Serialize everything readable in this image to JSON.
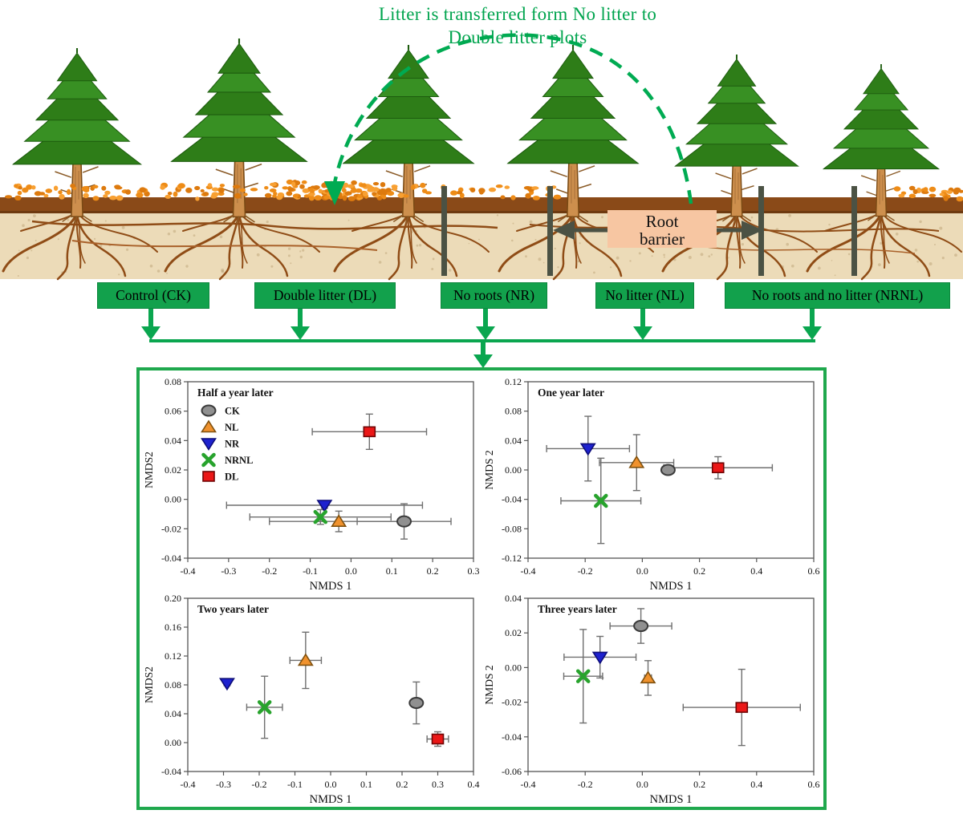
{
  "figure_title": {
    "line1": "Litter is transferred form No litter to",
    "line2": "Double litter plots"
  },
  "schematic": {
    "root_barrier_label": {
      "line1": "Root",
      "line2": "barrier"
    },
    "treatments": [
      {
        "label": "Control (CK)"
      },
      {
        "label": "Double litter (DL)"
      },
      {
        "label": "No roots (NR)"
      },
      {
        "label": "No litter (NL)"
      },
      {
        "label": "No roots and no litter (NRNL)"
      }
    ]
  },
  "colors": {
    "accent_green": "#00a44e",
    "box_green": "#12a14c",
    "panel_border_green": "#1fa84d",
    "dashed_arrow_green": "#00ab52",
    "barrier_label_bg": "#f7c6a2",
    "barrier_bar": "#4b5244",
    "ground_brown": "#8a4a18",
    "soil_tan": "#ecdbb8",
    "litter_orange": "#ee8c17",
    "error_bar_gray": "#6f6f6f"
  },
  "series_styles": {
    "CK": {
      "marker": "ellipse",
      "fill": "#909090",
      "stroke": "#3a3a3a"
    },
    "NL": {
      "marker": "triangle-up",
      "fill": "#f0922e",
      "stroke": "#80510f"
    },
    "NR": {
      "marker": "triangle-down",
      "fill": "#1e22cf",
      "stroke": "#0d0d7a"
    },
    "NRNL": {
      "marker": "x",
      "fill": "#28a32d",
      "stroke": "#1c7a20"
    },
    "DL": {
      "marker": "square",
      "fill": "#eb1717",
      "stroke": "#6e0505"
    }
  },
  "chart_data": [
    {
      "type": "scatter",
      "title": "Half a year later",
      "xlabel": "NMDS 1",
      "ylabel": "NMDS2",
      "xlim": [
        -0.4,
        0.3
      ],
      "xticks": [
        "-0.4",
        "-0.3",
        "-0.2",
        "-0.1",
        "0.0",
        "0.1",
        "0.2",
        "0.3"
      ],
      "ylim": [
        -0.04,
        0.08
      ],
      "yticks": [
        "0.08",
        "0.06",
        "0.04",
        "0.02",
        "0.00",
        "-0.02",
        "-0.04"
      ],
      "legend": [
        "CK",
        "NL",
        "NR",
        "NRNL",
        "DL"
      ],
      "points": [
        {
          "series": "CK",
          "x": 0.13,
          "y": -0.015,
          "xerr": 0.115,
          "yerr": 0.012
        },
        {
          "series": "NL",
          "x": -0.03,
          "y": -0.015,
          "xerr": 0.17,
          "yerr": 0.007
        },
        {
          "series": "NR",
          "x": -0.065,
          "y": -0.004,
          "xerr": 0.24,
          "yerr": 0.002
        },
        {
          "series": "NRNL",
          "x": -0.075,
          "y": -0.012,
          "xerr": 0.173,
          "yerr": 0.005
        },
        {
          "series": "DL",
          "x": 0.045,
          "y": 0.046,
          "xerr": 0.14,
          "yerr": 0.012
        }
      ]
    },
    {
      "type": "scatter",
      "title": "One year later",
      "xlabel": "NMDS 1",
      "ylabel": "NMDS 2",
      "xlim": [
        -0.4,
        0.6
      ],
      "xticks": [
        "-0.4",
        "-0.2",
        "0.0",
        "0.2",
        "0.4",
        "0.6"
      ],
      "ylim": [
        -0.12,
        0.12
      ],
      "yticks": [
        "0.12",
        "0.08",
        "0.04",
        "0.00",
        "-0.04",
        "-0.08",
        "-0.12"
      ],
      "legend": null,
      "points": [
        {
          "series": "CK",
          "x": 0.09,
          "y": 0.0,
          "xerr": 0.02,
          "yerr": 0.005
        },
        {
          "series": "NL",
          "x": -0.02,
          "y": 0.01,
          "xerr": 0.13,
          "yerr": 0.038
        },
        {
          "series": "NR",
          "x": -0.19,
          "y": 0.029,
          "xerr": 0.145,
          "yerr": 0.044
        },
        {
          "series": "NRNL",
          "x": -0.145,
          "y": -0.042,
          "xerr": 0.14,
          "yerr": 0.058
        },
        {
          "series": "DL",
          "x": 0.265,
          "y": 0.003,
          "xerr": 0.19,
          "yerr": 0.015
        }
      ]
    },
    {
      "type": "scatter",
      "title": "Two years later",
      "xlabel": "NMDS 1",
      "ylabel": "NMDS2",
      "xlim": [
        -0.4,
        0.4
      ],
      "xticks": [
        "-0.4",
        "-0.3",
        "-0.2",
        "-0.1",
        "0.0",
        "0.1",
        "0.2",
        "0.3",
        "0.4"
      ],
      "ylim": [
        -0.04,
        0.2
      ],
      "yticks": [
        "0.20",
        "0.16",
        "0.12",
        "0.08",
        "0.04",
        "0.00",
        "-0.04"
      ],
      "legend": null,
      "points": [
        {
          "series": "CK",
          "x": 0.24,
          "y": 0.055,
          "xerr": 0.01,
          "yerr": 0.029
        },
        {
          "series": "NL",
          "x": -0.07,
          "y": 0.114,
          "xerr": 0.044,
          "yerr": 0.039
        },
        {
          "series": "NR",
          "x": -0.29,
          "y": 0.082,
          "xerr": 0.004,
          "yerr": 0.003
        },
        {
          "series": "NRNL",
          "x": -0.185,
          "y": 0.049,
          "xerr": 0.05,
          "yerr": 0.043
        },
        {
          "series": "DL",
          "x": 0.3,
          "y": 0.005,
          "xerr": 0.03,
          "yerr": 0.01
        }
      ]
    },
    {
      "type": "scatter",
      "title": "Three years later",
      "xlabel": "NMDS 1",
      "ylabel": "NMDS 2",
      "xlim": [
        -0.4,
        0.6
      ],
      "xticks": [
        "-0.4",
        "-0.2",
        "0.0",
        "0.2",
        "0.4",
        "0.6"
      ],
      "ylim": [
        -0.06,
        0.04
      ],
      "yticks": [
        "0.04",
        "0.02",
        "0.00",
        "-0.02",
        "-0.04",
        "-0.06"
      ],
      "legend": null,
      "points": [
        {
          "series": "CK",
          "x": -0.005,
          "y": 0.024,
          "xerr": 0.108,
          "yerr": 0.01
        },
        {
          "series": "NL",
          "x": 0.02,
          "y": -0.006,
          "xerr": 0.012,
          "yerr": 0.01
        },
        {
          "series": "NR",
          "x": -0.148,
          "y": 0.006,
          "xerr": 0.126,
          "yerr": 0.012
        },
        {
          "series": "NRNL",
          "x": -0.207,
          "y": -0.005,
          "xerr": 0.068,
          "yerr": 0.027
        },
        {
          "series": "DL",
          "x": 0.348,
          "y": -0.023,
          "xerr": 0.205,
          "yerr": 0.022
        }
      ]
    }
  ]
}
